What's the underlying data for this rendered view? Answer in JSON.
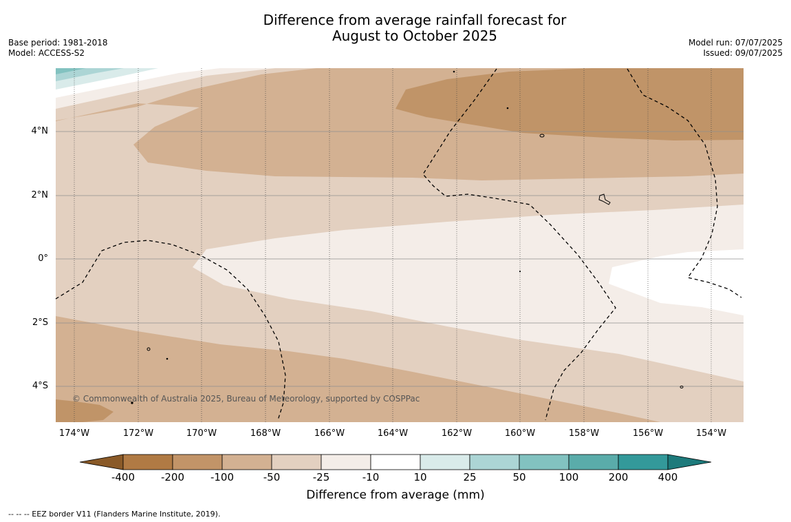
{
  "title_line1": "Difference from average rainfall forecast for",
  "title_line2": "August to October 2025",
  "meta_left": {
    "base_period": "Base period: 1981-2018",
    "model": "Model: ACCESS-S2"
  },
  "meta_right": {
    "model_run": "Model run: 07/07/2025",
    "issued": "Issued: 09/07/2025"
  },
  "lat_labels": [
    "4°N",
    "2°N",
    "0°",
    "2°S",
    "4°S"
  ],
  "lon_labels": [
    "174°W",
    "172°W",
    "170°W",
    "168°W",
    "166°W",
    "164°W",
    "162°W",
    "160°W",
    "158°W",
    "156°W",
    "154°W"
  ],
  "copyright": "© Commonwealth of Australia 2025, Bureau of Meteorology, supported by COSPPac",
  "colorbar": {
    "label": "Difference from average (mm)",
    "ticks": [
      "-400",
      "-200",
      "-100",
      "-50",
      "-25",
      "-10",
      "10",
      "25",
      "50",
      "100",
      "200",
      "400"
    ],
    "colors": [
      "#8a5a28",
      "#b07a44",
      "#c29468",
      "#d3b192",
      "#e3d0c0",
      "#f4ede8",
      "#ffffff",
      "#d9ebea",
      "#acd5d5",
      "#82c2c0",
      "#5aacaa",
      "#33999a",
      "#1d7a7b"
    ]
  },
  "footnote": "--  --  -- EEZ border V11 (Flanders Marine Institute, 2019).",
  "map": {
    "colors": {
      "very_dry": "#c09468",
      "dry": "#d3b192",
      "slightly_dry": "#e3d0c0",
      "near_normal_dry": "#f4ede8",
      "neutral": "#ffffff",
      "slightly_wet": "#d9ebea",
      "wet": "#acd5d5",
      "wetter": "#82c2c0"
    }
  }
}
